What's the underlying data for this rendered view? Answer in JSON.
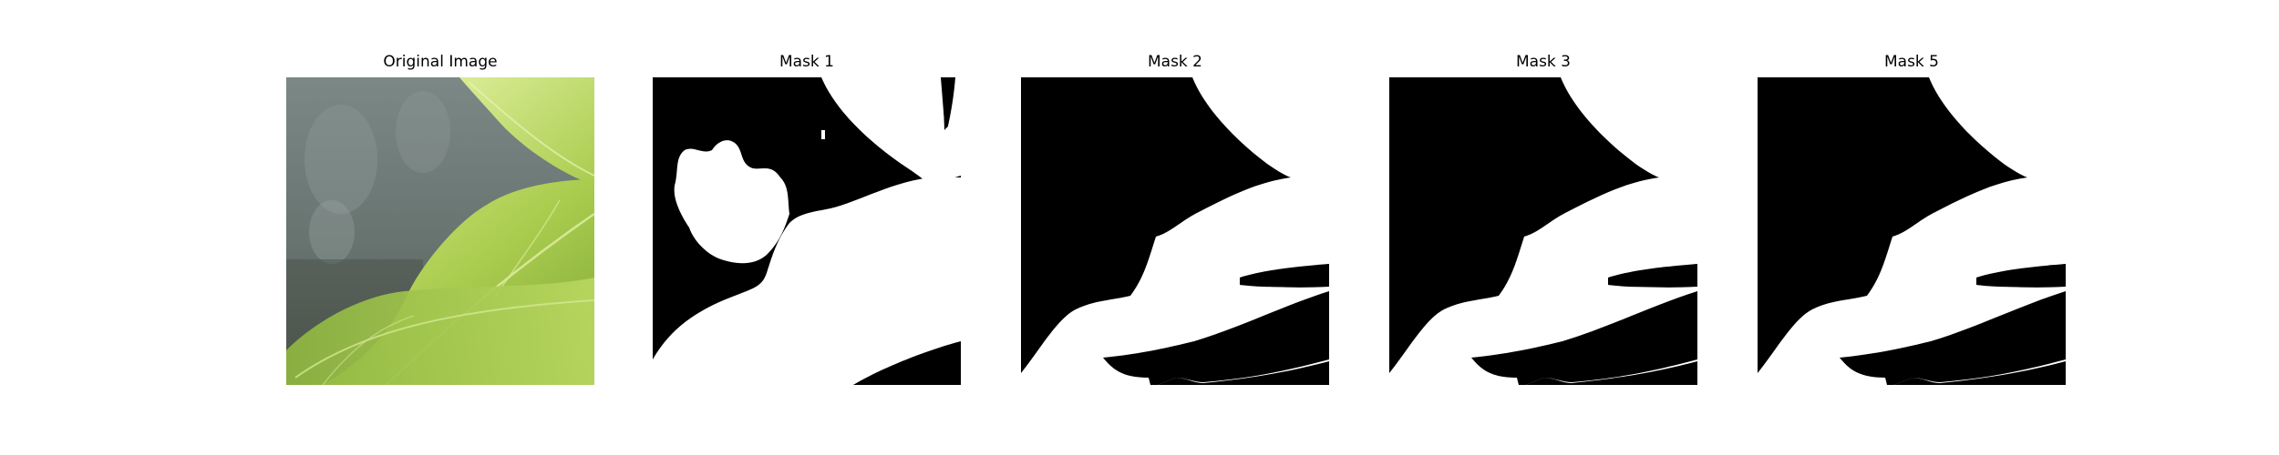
{
  "panels": [
    {
      "title": "Original Image",
      "kind": "photo",
      "content": "green leaves photo"
    },
    {
      "title": "Mask 1",
      "kind": "mask"
    },
    {
      "title": "Mask 2",
      "kind": "mask"
    },
    {
      "title": "Mask 3",
      "kind": "mask"
    },
    {
      "title": "Mask 5",
      "kind": "mask"
    }
  ],
  "colors": {
    "mask_background": "#000000",
    "mask_foreground": "#ffffff",
    "leaf_light": "#c9e27a",
    "leaf_mid": "#a9cc4e",
    "leaf_dark": "#7fa636",
    "background_gray": "#6e7a78"
  }
}
